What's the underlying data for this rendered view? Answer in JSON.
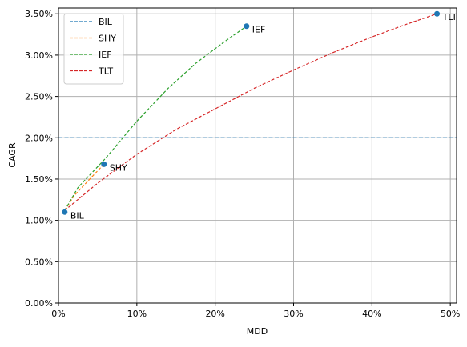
{
  "chart_data": {
    "type": "line",
    "xlabel": "MDD",
    "ylabel": "CAGR",
    "xlim": [
      0,
      50.8
    ],
    "ylim": [
      0,
      3.57
    ],
    "x_ticks": [
      {
        "value": 0,
        "label": "0%"
      },
      {
        "value": 10,
        "label": "10%"
      },
      {
        "value": 20,
        "label": "20%"
      },
      {
        "value": 30,
        "label": "30%"
      },
      {
        "value": 40,
        "label": "40%"
      },
      {
        "value": 50,
        "label": "50%"
      }
    ],
    "y_ticks": [
      {
        "value": 0,
        "label": "0.00%"
      },
      {
        "value": 0.5,
        "label": "0.50%"
      },
      {
        "value": 1.0,
        "label": "1.00%"
      },
      {
        "value": 1.5,
        "label": "1.50%"
      },
      {
        "value": 2.0,
        "label": "2.00%"
      },
      {
        "value": 2.5,
        "label": "2.50%"
      },
      {
        "value": 3.0,
        "label": "3.00%"
      },
      {
        "value": 3.5,
        "label": "3.50%"
      }
    ],
    "grid": true,
    "legend_position": "top-left",
    "series": [
      {
        "name": "BIL",
        "color": "#1f77b4",
        "style": "hline",
        "y": 2.0
      },
      {
        "name": "SHY",
        "color": "#ff7f0e",
        "points": [
          [
            0.8,
            1.12
          ],
          [
            2.0,
            1.3
          ],
          [
            3.5,
            1.45
          ],
          [
            5.8,
            1.68
          ]
        ]
      },
      {
        "name": "IEF",
        "color": "#2ca02c",
        "points": [
          [
            0.8,
            1.12
          ],
          [
            2.5,
            1.4
          ],
          [
            6.0,
            1.75
          ],
          [
            10.0,
            2.2
          ],
          [
            14.0,
            2.6
          ],
          [
            17.5,
            2.9
          ],
          [
            21.0,
            3.15
          ],
          [
            24.0,
            3.35
          ]
        ]
      },
      {
        "name": "TLT",
        "color": "#d62728",
        "points": [
          [
            0.8,
            1.12
          ],
          [
            5.0,
            1.45
          ],
          [
            10.0,
            1.8
          ],
          [
            15.0,
            2.1
          ],
          [
            20.0,
            2.35
          ],
          [
            25.0,
            2.6
          ],
          [
            30.0,
            2.82
          ],
          [
            35.0,
            3.03
          ],
          [
            40.0,
            3.22
          ],
          [
            44.0,
            3.36
          ],
          [
            48.3,
            3.5
          ]
        ]
      }
    ],
    "markers": [
      {
        "label": "BIL",
        "x": 0.8,
        "y": 1.1
      },
      {
        "label": "SHY",
        "x": 5.8,
        "y": 1.68
      },
      {
        "label": "IEF",
        "x": 24.0,
        "y": 3.35
      },
      {
        "label": "TLT",
        "x": 48.3,
        "y": 3.5
      }
    ],
    "marker_color": "#1f77b4",
    "grid_color": "#b0b0b0"
  }
}
